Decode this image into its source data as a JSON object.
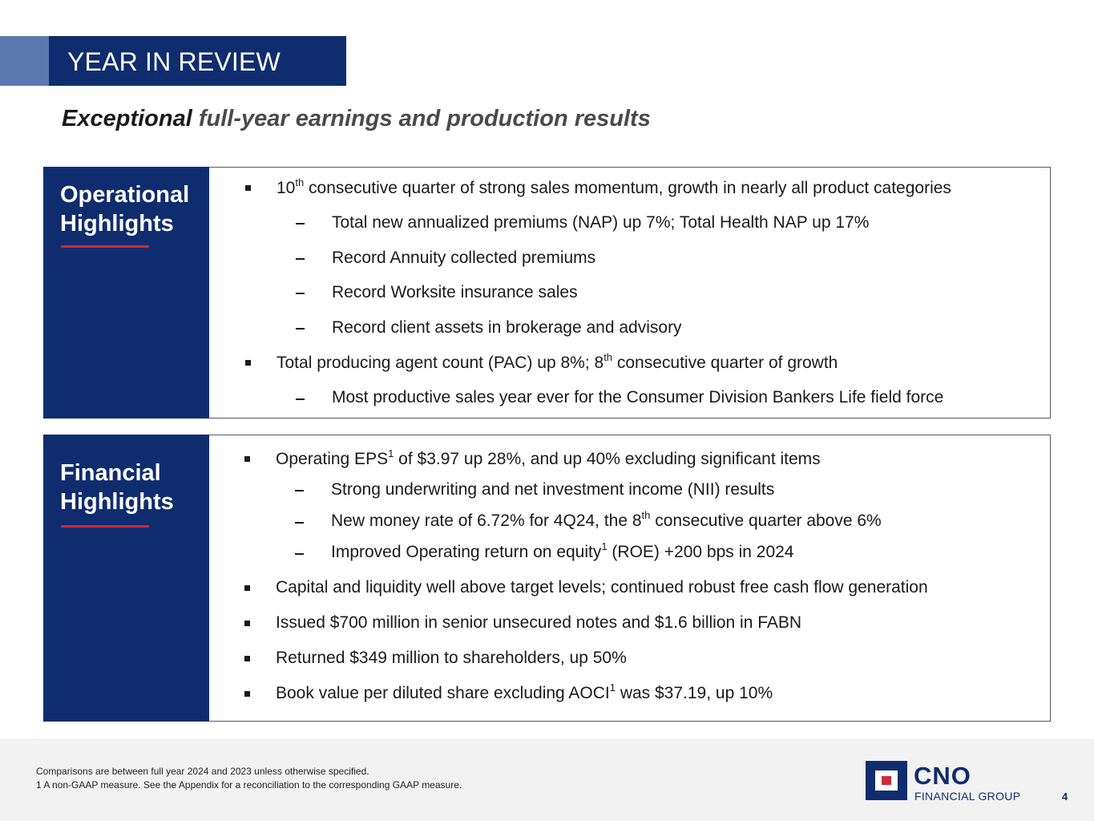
{
  "header": {
    "title": "YEAR IN REVIEW"
  },
  "subtitle": {
    "emphasis": "Exceptional",
    "rest": " full-year earnings and production results"
  },
  "operational": {
    "label_line1": "Operational",
    "label_line2": "Highlights",
    "items": [
      {
        "pre": "10",
        "sup": "th",
        "post": " consecutive quarter of strong sales momentum, growth in nearly all product categories"
      },
      {
        "text": "Total new annualized premiums (NAP) up 7%; Total Health NAP up 17%"
      },
      {
        "text": "Record Annuity collected premiums"
      },
      {
        "text": "Record Worksite insurance sales"
      },
      {
        "text": "Record client assets in brokerage and advisory"
      },
      {
        "pre": "Total producing agent count (PAC) up 8%; 8",
        "sup": "th",
        "post": " consecutive quarter of growth"
      },
      {
        "text": "Most productive sales year ever for the Consumer Division Bankers Life field force"
      }
    ]
  },
  "financial": {
    "label_line1": "Financial",
    "label_line2": "Highlights",
    "items": [
      {
        "pre": "Operating EPS",
        "sup": "1",
        "post": " of $3.97 up 28%, and up 40% excluding significant items"
      },
      {
        "text": "Strong underwriting and net investment income (NII) results"
      },
      {
        "pre": "New money rate of 6.72% for 4Q24, the 8",
        "sup": "th",
        "post": " consecutive quarter above 6%"
      },
      {
        "pre": "Improved Operating return on equity",
        "sup": "1",
        "post": " (ROE) +200 bps in 2024"
      },
      {
        "text": "Capital and liquidity well above target levels; continued robust free cash flow generation"
      },
      {
        "text": "Issued $700 million in senior unsecured notes and $1.6 billion in FABN"
      },
      {
        "text": "Returned $349 million to shareholders, up 50%"
      },
      {
        "pre": "Book value per diluted share excluding AOCI",
        "sup": "1",
        "post": " was $37.19, up 10%"
      }
    ]
  },
  "footer": {
    "note1": "Comparisons are between full year 2024 and 2023 unless otherwise specified.",
    "note2": "1  A non-GAAP measure. See the Appendix for a reconciliation to the corresponding GAAP measure.",
    "logo_name": "CNO",
    "logo_sub": "FINANCIAL GROUP",
    "page_number": "4"
  },
  "colors": {
    "navy": "#0f2d6e",
    "accent_blue": "#5a78ad",
    "red": "#d0283a",
    "footer_bg": "#f2f2f2"
  }
}
